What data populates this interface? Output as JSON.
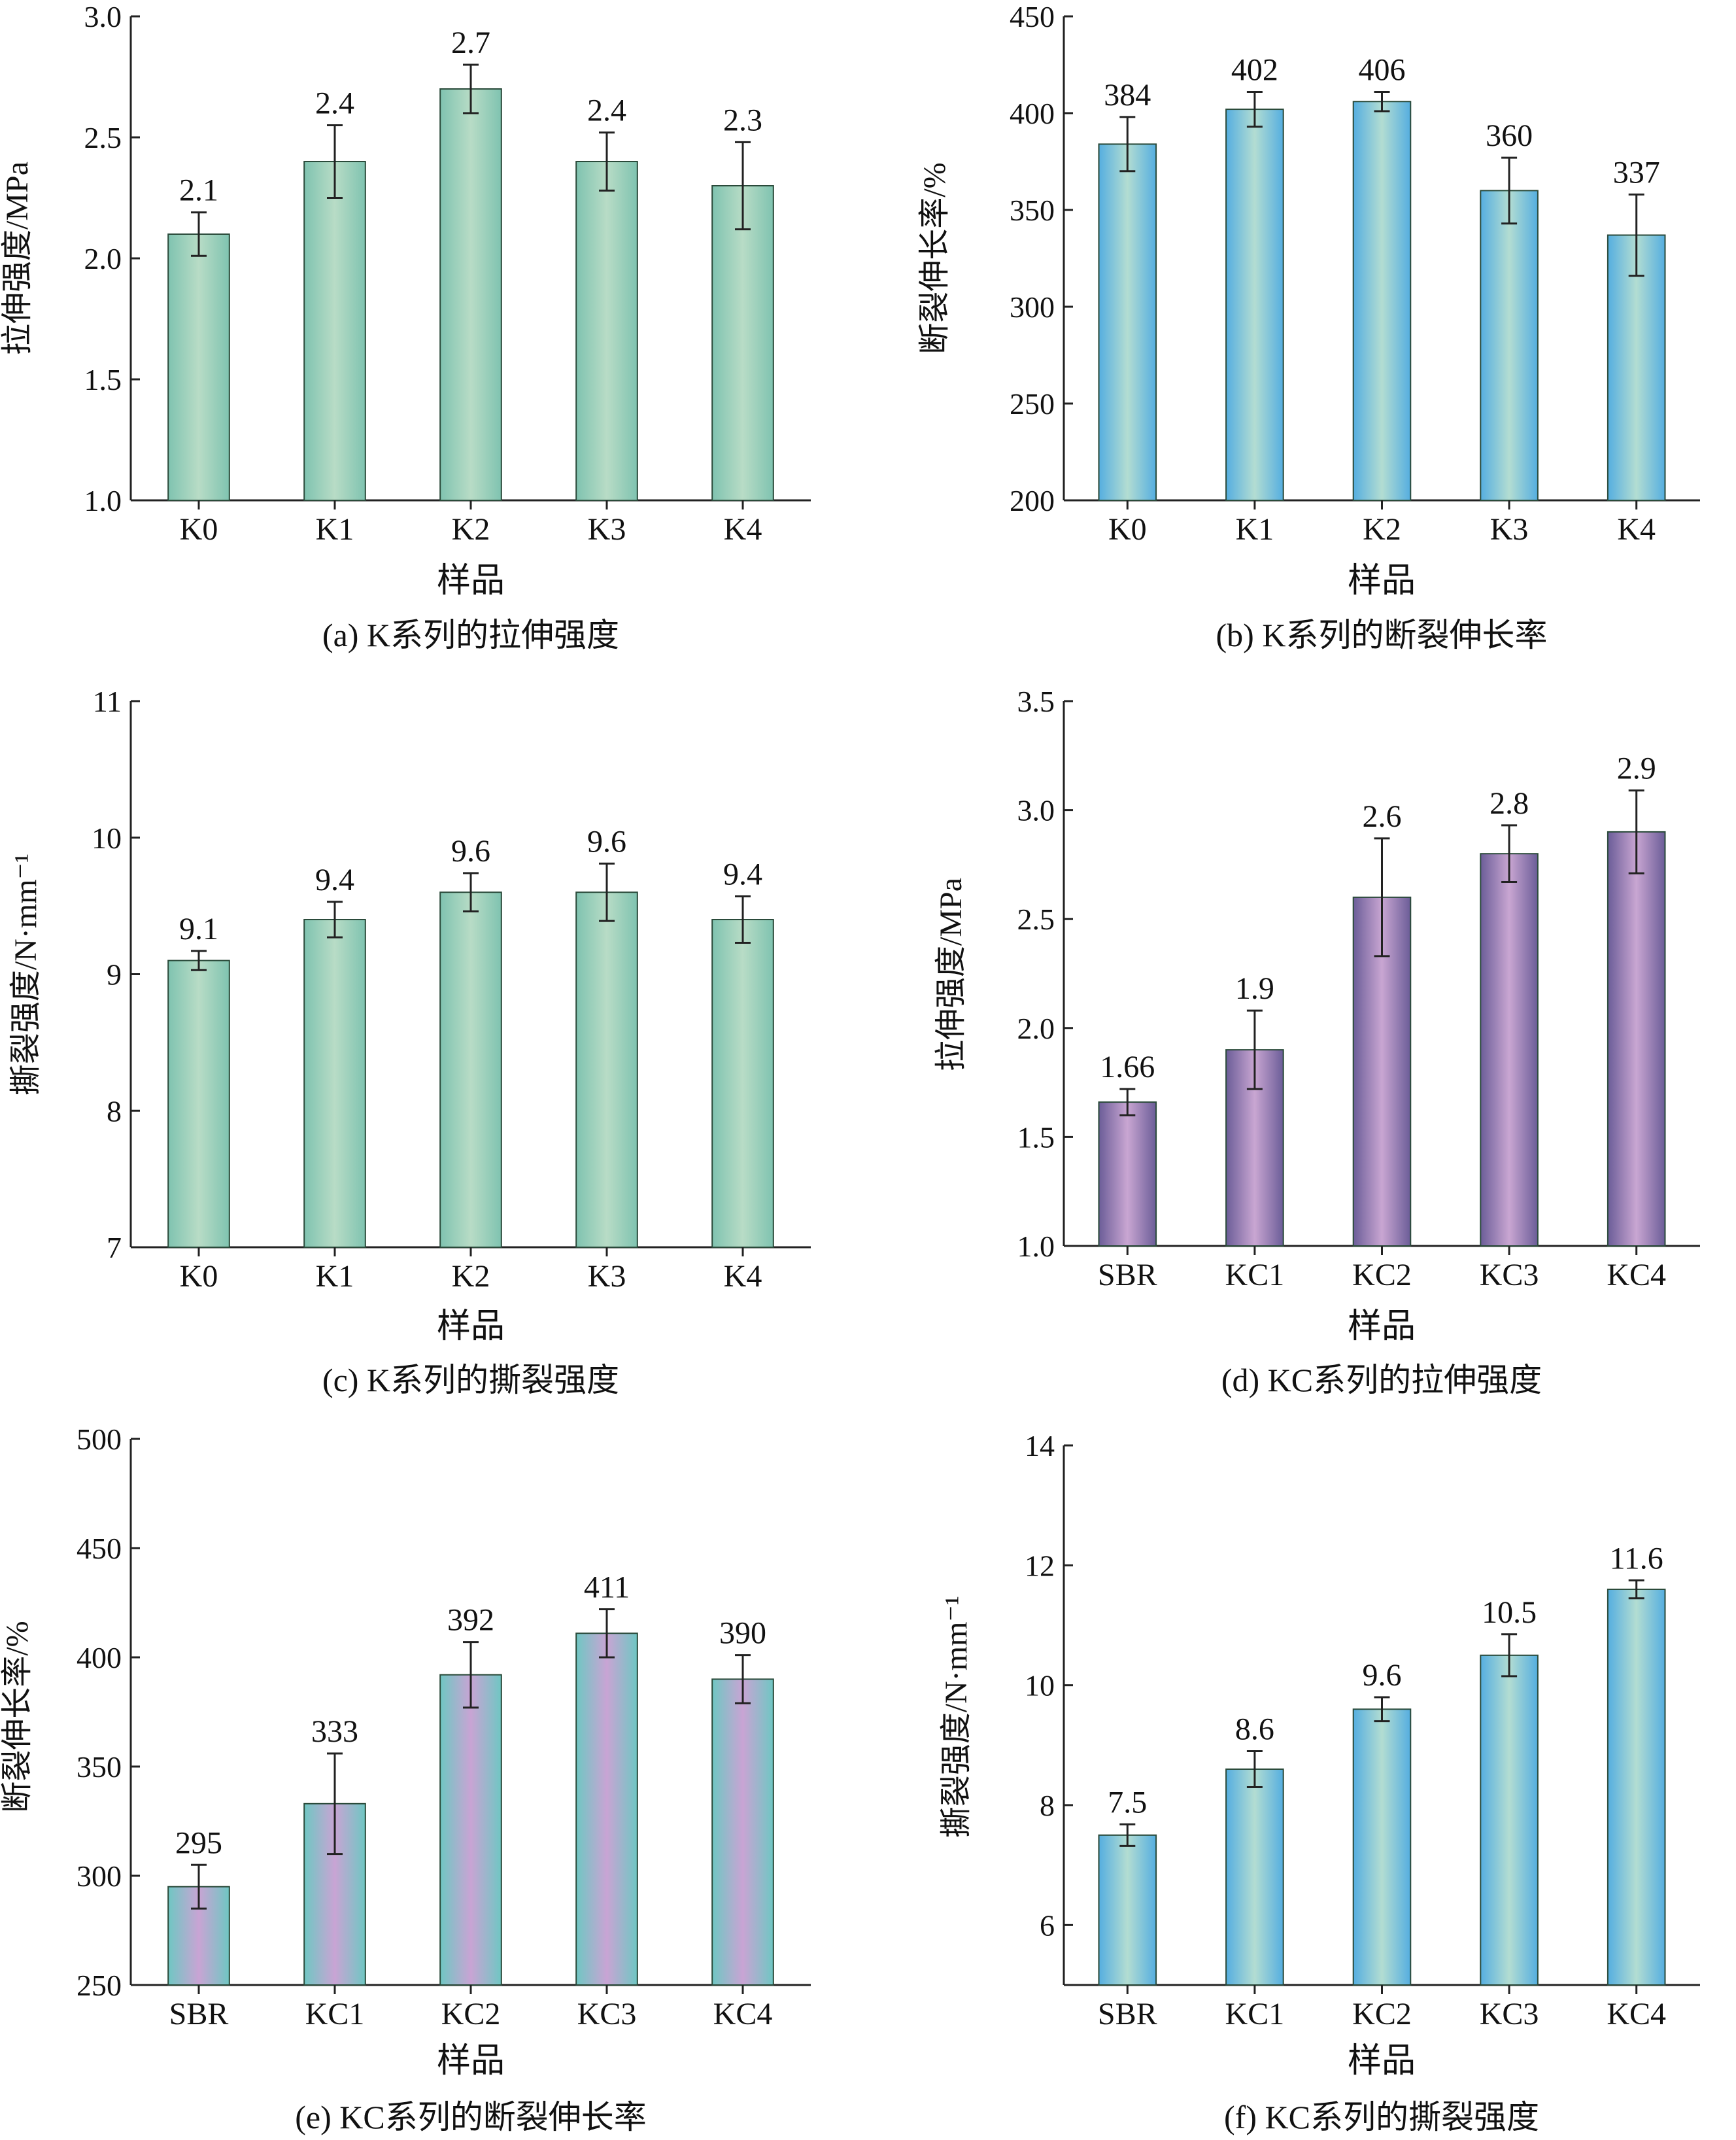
{
  "figure": {
    "charts": [
      {
        "id": "a",
        "type": "bar",
        "caption": "(a) K系列的拉伸强度",
        "ylabel": "拉伸强度/MPa",
        "xlabel": "样品",
        "categories": [
          "K0",
          "K1",
          "K2",
          "K3",
          "K4"
        ],
        "values": [
          2.1,
          2.4,
          2.7,
          2.4,
          2.3
        ],
        "value_labels": [
          "2.1",
          "2.4",
          "2.7",
          "2.4",
          "2.3"
        ],
        "errors": [
          0.09,
          0.15,
          0.1,
          0.12,
          0.18
        ],
        "ylim": [
          1.0,
          3.0
        ],
        "yticks": [
          1.0,
          1.5,
          2.0,
          2.5,
          3.0
        ],
        "ytick_labels": [
          "1.0",
          "1.5",
          "2.0",
          "2.5",
          "3.0"
        ],
        "palette": "green",
        "bar_colors": [
          "#7fc3b0",
          "#b8dcc6"
        ]
      },
      {
        "id": "b",
        "type": "bar",
        "caption": "(b) K系列的断裂伸长率",
        "ylabel": "断裂伸长率/%",
        "xlabel": "样品",
        "categories": [
          "K0",
          "K1",
          "K2",
          "K3",
          "K4"
        ],
        "values": [
          384,
          402,
          406,
          360,
          337
        ],
        "value_labels": [
          "384",
          "402",
          "406",
          "360",
          "337"
        ],
        "errors": [
          14,
          9,
          5,
          17,
          21
        ],
        "ylim": [
          200,
          450
        ],
        "yticks": [
          200,
          250,
          300,
          350,
          400,
          450
        ],
        "ytick_labels": [
          "200",
          "250",
          "300",
          "350",
          "400",
          "450"
        ],
        "palette": "blue",
        "bar_colors": [
          "#55aee0",
          "#b3ddd2"
        ]
      },
      {
        "id": "c",
        "type": "bar",
        "caption": "(c) K系列的撕裂强度",
        "ylabel": "撕裂强度/N·mm⁻¹",
        "xlabel": "样品",
        "categories": [
          "K0",
          "K1",
          "K2",
          "K3",
          "K4"
        ],
        "values": [
          9.1,
          9.4,
          9.6,
          9.6,
          9.4
        ],
        "value_labels": [
          "9.1",
          "9.4",
          "9.6",
          "9.6",
          "9.4"
        ],
        "errors": [
          0.07,
          0.13,
          0.14,
          0.21,
          0.17
        ],
        "ylim": [
          7,
          11
        ],
        "yticks": [
          7,
          8,
          9,
          10,
          11
        ],
        "ytick_labels": [
          "7",
          "8",
          "9",
          "10",
          "11"
        ],
        "palette": "green",
        "bar_colors": [
          "#7fc3b0",
          "#b8dcc6"
        ]
      },
      {
        "id": "d",
        "type": "bar",
        "caption": "(d) KC系列的拉伸强度",
        "ylabel": "拉伸强度/MPa",
        "xlabel": "样品",
        "categories": [
          "SBR",
          "KC1",
          "KC2",
          "KC3",
          "KC4"
        ],
        "values": [
          1.66,
          1.9,
          2.6,
          2.8,
          2.9
        ],
        "value_labels": [
          "1.66",
          "1.9",
          "2.6",
          "2.8",
          "2.9"
        ],
        "errors": [
          0.06,
          0.18,
          0.27,
          0.13,
          0.19
        ],
        "ylim": [
          1.0,
          3.5
        ],
        "yticks": [
          1.0,
          1.5,
          2.0,
          2.5,
          3.0,
          3.5
        ],
        "ytick_labels": [
          "1.0",
          "1.5",
          "2.0",
          "2.5",
          "3.0",
          "3.5"
        ],
        "palette": "purple",
        "bar_colors": [
          "#6b5d98",
          "#c9a6d2"
        ]
      },
      {
        "id": "e",
        "type": "bar",
        "caption": "(e) KC系列的断裂伸长率",
        "ylabel": "断裂伸长率/%",
        "xlabel": "样品",
        "categories": [
          "SBR",
          "KC1",
          "KC2",
          "KC3",
          "KC4"
        ],
        "values": [
          295,
          333,
          392,
          411,
          390
        ],
        "value_labels": [
          "295",
          "333",
          "392",
          "411",
          "390"
        ],
        "errors": [
          10,
          23,
          15,
          11,
          11
        ],
        "ylim": [
          250,
          500
        ],
        "yticks": [
          250,
          300,
          350,
          400,
          450,
          500
        ],
        "ytick_labels": [
          "250",
          "300",
          "350",
          "400",
          "450",
          "500"
        ],
        "palette": "pink-teal",
        "bar_colors": [
          "#6fc7c3",
          "#c9a4d4"
        ]
      },
      {
        "id": "f",
        "type": "bar",
        "caption": "(f) KC系列的撕裂强度",
        "ylabel": "撕裂强度/N·mm⁻¹",
        "xlabel": "样品",
        "categories": [
          "SBR",
          "KC1",
          "KC2",
          "KC3",
          "KC4"
        ],
        "values": [
          7.5,
          8.6,
          9.6,
          10.5,
          11.6
        ],
        "value_labels": [
          "7.5",
          "8.6",
          "9.6",
          "10.5",
          "11.6"
        ],
        "errors": [
          0.18,
          0.3,
          0.2,
          0.35,
          0.15
        ],
        "ylim": [
          5,
          14
        ],
        "yticks": [
          6,
          8,
          10,
          12,
          14
        ],
        "ytick_labels": [
          "6",
          "8",
          "10",
          "12",
          "14"
        ],
        "palette": "blue",
        "bar_colors": [
          "#55aee0",
          "#b3ddd2"
        ]
      }
    ]
  }
}
